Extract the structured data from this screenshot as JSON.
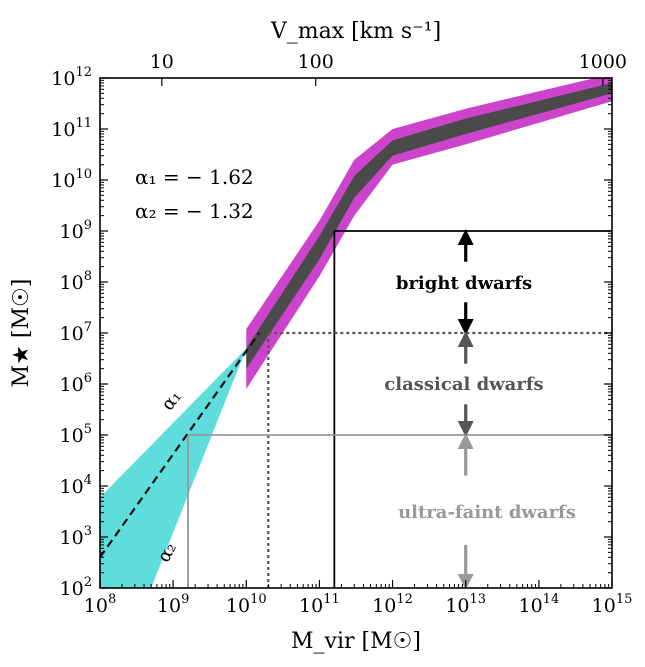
{
  "chart_data": {
    "type": "line",
    "x_scale": "log",
    "y_scale": "log",
    "xlabel": "M_vir [M☉]",
    "ylabel": "M★ [M☉]",
    "top_xlabel": "V_max [km s⁻¹]",
    "xlim": [
      100000000.0,
      1000000000000000.0
    ],
    "ylim": [
      100.0,
      1000000000000.0
    ],
    "x_ticks": [
      {
        "base": "10",
        "exp": "8",
        "value": 100000000.0
      },
      {
        "base": "10",
        "exp": "9",
        "value": 1000000000.0
      },
      {
        "base": "10",
        "exp": "10",
        "value": 10000000000.0
      },
      {
        "base": "10",
        "exp": "11",
        "value": 100000000000.0
      },
      {
        "base": "10",
        "exp": "12",
        "value": 1000000000000.0
      },
      {
        "base": "10",
        "exp": "13",
        "value": 10000000000000.0
      },
      {
        "base": "10",
        "exp": "14",
        "value": 100000000000000.0
      },
      {
        "base": "10",
        "exp": "15",
        "value": 1000000000000000.0
      }
    ],
    "y_ticks": [
      {
        "base": "10",
        "exp": "2",
        "value": 100.0
      },
      {
        "base": "10",
        "exp": "3",
        "value": 1000.0
      },
      {
        "base": "10",
        "exp": "4",
        "value": 10000.0
      },
      {
        "base": "10",
        "exp": "5",
        "value": 100000.0
      },
      {
        "base": "10",
        "exp": "6",
        "value": 1000000.0
      },
      {
        "base": "10",
        "exp": "7",
        "value": 10000000.0
      },
      {
        "base": "10",
        "exp": "8",
        "value": 100000000.0
      },
      {
        "base": "10",
        "exp": "9",
        "value": 1000000000.0
      },
      {
        "base": "10",
        "exp": "10",
        "value": 10000000000.0
      },
      {
        "base": "10",
        "exp": "11",
        "value": 100000000000.0
      },
      {
        "base": "10",
        "exp": "12",
        "value": 1000000000000.0
      }
    ],
    "top_ticks": [
      {
        "label": "10",
        "value": 700000000.0
      },
      {
        "label": "100",
        "value": 89000000000.0
      },
      {
        "label": "1000",
        "value": 750000000000000.0
      }
    ],
    "annotations": {
      "alpha1_text": "α₁ = − 1.62",
      "alpha2_text": "α₂ = − 1.32",
      "alpha1_label": "α₁",
      "alpha2_label": "α₂",
      "bright": "bright dwarfs",
      "classical": "classical dwarfs",
      "ultrafaint": "ultra-faint dwarfs"
    },
    "series": [
      {
        "kind": "band",
        "color": "#cc44cc",
        "upper": [
          [
            10000000000.0,
            12000000.0
          ],
          [
            100000000000.0,
            1600000000.0
          ],
          [
            300000000000.0,
            25000000000.0
          ],
          [
            1000000000000.0,
            100000000000.0
          ],
          [
            10000000000000.0,
            250000000000.0
          ],
          [
            1000000000000000.0,
            1200000000000.0
          ]
        ],
        "lower": [
          [
            10000000000.0,
            800000.0
          ],
          [
            100000000000.0,
            130000000.0
          ],
          [
            300000000000.0,
            2000000000.0
          ],
          [
            1000000000000.0,
            20000000000.0
          ],
          [
            10000000000000.0,
            50000000000.0
          ],
          [
            1000000000000000.0,
            350000000000.0
          ]
        ]
      },
      {
        "kind": "band",
        "color": "#4a4a4a",
        "upper": [
          [
            10000000000.0,
            5000000.0
          ],
          [
            100000000000.0,
            800000000.0
          ],
          [
            300000000000.0,
            12000000000.0
          ],
          [
            1000000000000.0,
            60000000000.0
          ],
          [
            10000000000000.0,
            160000000000.0
          ],
          [
            1000000000000000.0,
            800000000000.0
          ]
        ],
        "lower": [
          [
            10000000000.0,
            2000000.0
          ],
          [
            100000000000.0,
            280000000.0
          ],
          [
            300000000000.0,
            4500000000.0
          ],
          [
            1000000000000.0,
            30000000000.0
          ],
          [
            10000000000000.0,
            80000000000.0
          ],
          [
            1000000000000000.0,
            500000000000.0
          ]
        ]
      },
      {
        "kind": "wedge",
        "color": "#5fdcdc",
        "apex": [
          10000000000.0,
          5000000.0
        ],
        "upper_end": [
          100000000.0,
          6000.0
        ],
        "lower_end": [
          500000000.0,
          100.0
        ],
        "lower_bottom_left": [
          100000000.0,
          100.0
        ]
      },
      {
        "kind": "dashed_line",
        "color": "#111111",
        "points": [
          [
            100000000.0,
            400.0
          ],
          [
            15000000000.0,
            10000000.0
          ]
        ]
      }
    ],
    "regions": [
      {
        "name": "bright dwarfs",
        "style": "solid",
        "color": "#000000",
        "x_min": 160000000000.0,
        "y_min": 1000000000.0
      },
      {
        "name": "classical dwarfs",
        "style": "dotted",
        "color": "#555555",
        "x_min": 20000000000.0,
        "y_min": 10000000.0
      },
      {
        "name": "ultra-faint dwarfs",
        "style": "solid",
        "color": "#999999",
        "x_min": 1600000000.0,
        "y_min": 100000.0
      }
    ],
    "arrows": [
      {
        "group": "bright dwarfs",
        "color": "#000000",
        "x": 10000000000000.0,
        "y_from": 250000000.0,
        "y_to": 1000000000.0
      },
      {
        "group": "bright dwarfs",
        "color": "#000000",
        "x": 10000000000000.0,
        "y_from": 40000000.0,
        "y_to": 10000000.0
      },
      {
        "group": "classical dwarfs",
        "color": "#555555",
        "x": 10000000000000.0,
        "y_from": 2500000.0,
        "y_to": 10000000.0
      },
      {
        "group": "classical dwarfs",
        "color": "#555555",
        "x": 10000000000000.0,
        "y_from": 400000.0,
        "y_to": 100000.0
      },
      {
        "group": "ultra-faint dwarfs",
        "color": "#999999",
        "x": 10000000000000.0,
        "y_from": 16000.0,
        "y_to": 100000.0
      },
      {
        "group": "ultra-faint dwarfs",
        "color": "#999999",
        "x": 10000000000000.0,
        "y_from": 700.0,
        "y_to": 100.0
      }
    ],
    "grid": false,
    "legend": "none"
  }
}
